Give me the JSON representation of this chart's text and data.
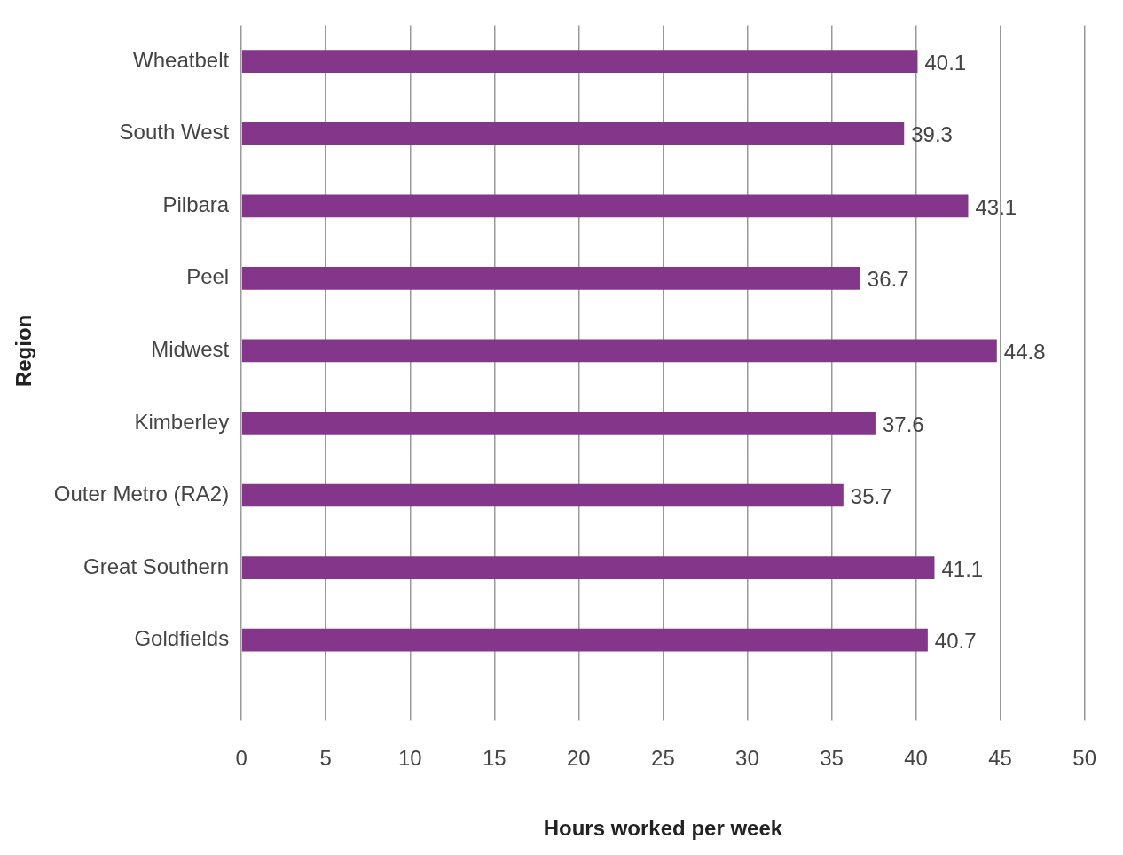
{
  "chart_data": {
    "type": "bar",
    "orientation": "horizontal",
    "xlabel": "Hours worked per week",
    "ylabel": "Region",
    "categories": [
      "Wheatbelt",
      "South West",
      "Pilbara",
      "Peel",
      "Midwest",
      "Kimberley",
      "Outer Metro (RA2)",
      "Great Southern",
      "Goldfields"
    ],
    "values": [
      40.1,
      39.3,
      43.1,
      36.7,
      44.8,
      37.6,
      35.7,
      41.1,
      40.7
    ],
    "color": "#84368a",
    "xlim": [
      0,
      50
    ],
    "xticks": [
      0,
      5,
      10,
      15,
      20,
      25,
      30,
      35,
      40,
      45,
      50
    ],
    "grid": "x",
    "legend": false,
    "data_labels": true
  }
}
